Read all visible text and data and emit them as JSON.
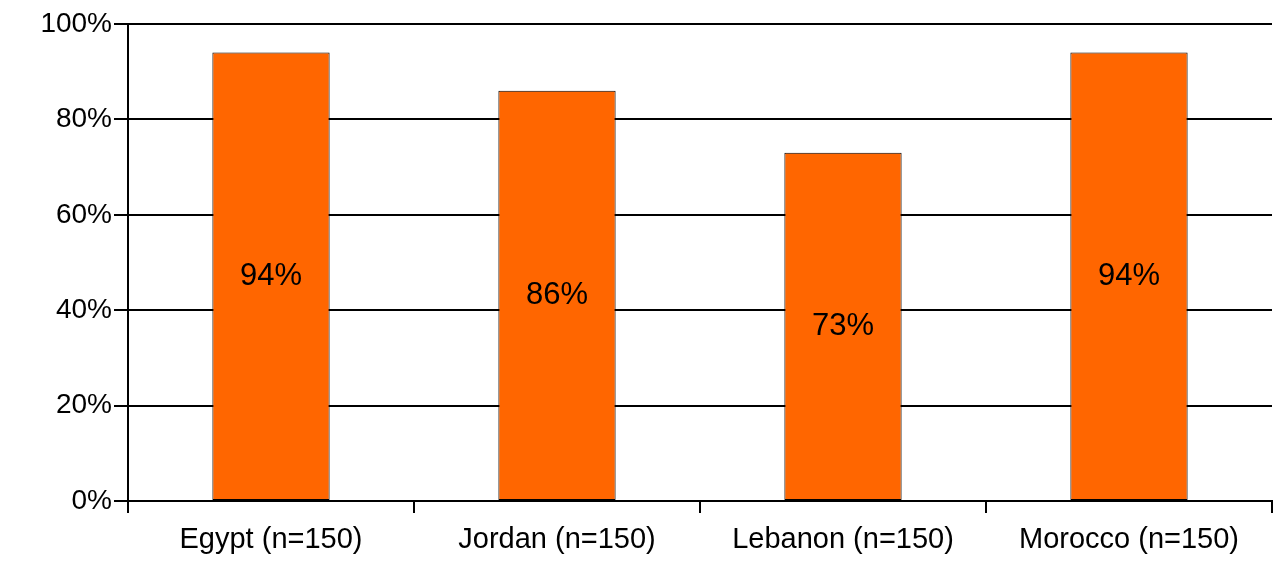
{
  "chart_data": {
    "type": "bar",
    "categories": [
      "Egypt (n=150)",
      "Jordan (n=150)",
      "Lebanon (n=150)",
      "Morocco (n=150)"
    ],
    "values": [
      94,
      86,
      73,
      94
    ],
    "color": "#ff6600",
    "value_labels": [
      "94%",
      "86%",
      "73%",
      "94%"
    ],
    "ylim": [
      0,
      100
    ],
    "yticks": [
      {
        "value": 0,
        "label": "0%"
      },
      {
        "value": 20,
        "label": "20%"
      },
      {
        "value": 40,
        "label": "40%"
      },
      {
        "value": 60,
        "label": "60%"
      },
      {
        "value": 80,
        "label": "80%"
      },
      {
        "value": 100,
        "label": "100%"
      }
    ],
    "grid": "y",
    "legend": false
  }
}
